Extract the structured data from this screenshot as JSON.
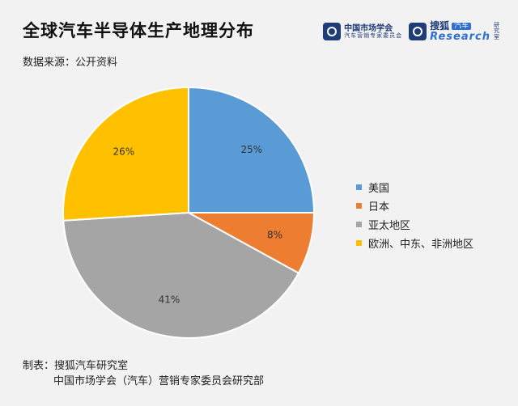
{
  "title": "全球汽车半导体生产地理分布",
  "source": "数据来源：公开资料",
  "logos": {
    "org_name": "中国市场学会",
    "org_sub": "汽车营销专家委员会",
    "brand": "搜狐",
    "brand_tag": "汽车",
    "research": "Research",
    "side": "研究室"
  },
  "footer": {
    "line1": "制表：搜狐汽车研究室",
    "line2": "中国市场学会（汽车）营销专家委员会研究部"
  },
  "colors": {
    "usa": "#5b9bd5",
    "japan": "#ed7d31",
    "apac": "#a5a5a5",
    "emea": "#ffc000"
  },
  "chart_data": {
    "type": "pie",
    "title": "全球汽车半导体生产地理分布",
    "slices": [
      {
        "label": "美国",
        "value": 25,
        "display": "25%",
        "color": "#5b9bd5"
      },
      {
        "label": "日本",
        "value": 8,
        "display": "8%",
        "color": "#ed7d31"
      },
      {
        "label": "亚太地区",
        "value": 41,
        "display": "41%",
        "color": "#a5a5a5"
      },
      {
        "label": "欧洲、中东、非洲地区",
        "value": 26,
        "display": "26%",
        "color": "#ffc000"
      }
    ],
    "start_angle": "12 o'clock",
    "direction": "clockwise",
    "legend_position": "right"
  }
}
